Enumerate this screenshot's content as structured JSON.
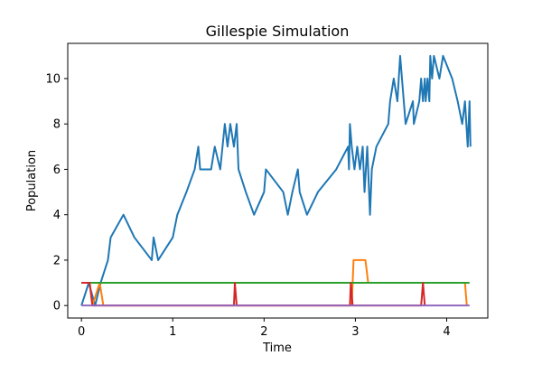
{
  "chart_data": {
    "type": "line",
    "title": "Gillespie Simulation",
    "xlabel": "Time",
    "ylabel": "Population",
    "xlim": [
      -0.15,
      4.45
    ],
    "ylim": [
      -0.55,
      11.55
    ],
    "xticks": [
      0,
      1,
      2,
      3,
      4
    ],
    "yticks": [
      0,
      2,
      4,
      6,
      8,
      10
    ],
    "grid": false,
    "legend": "none",
    "series": [
      {
        "color": "#1f77b4",
        "x": [
          0,
          0.08,
          0.15,
          0.21,
          0.29,
          0.32,
          0.46,
          0.58,
          0.77,
          0.79,
          0.84,
          1.0,
          1.05,
          1.15,
          1.24,
          1.28,
          1.3,
          1.42,
          1.46,
          1.52,
          1.57,
          1.6,
          1.63,
          1.67,
          1.7,
          1.72,
          1.8,
          1.89,
          2.0,
          2.02,
          2.21,
          2.26,
          2.31,
          2.37,
          2.39,
          2.47,
          2.59,
          2.79,
          2.92,
          2.93,
          2.94,
          2.96,
          2.99,
          3.02,
          3.05,
          3.08,
          3.1,
          3.13,
          3.16,
          3.18,
          3.23,
          3.36,
          3.38,
          3.42,
          3.46,
          3.49,
          3.55,
          3.63,
          3.64,
          3.7,
          3.72,
          3.74,
          3.76,
          3.77,
          3.79,
          3.81,
          3.82,
          3.84,
          3.86,
          3.92,
          3.96,
          4.06,
          4.12,
          4.17,
          4.2,
          4.23,
          4.25,
          4.26
        ],
        "y": [
          0,
          1,
          0,
          1,
          2,
          3,
          4,
          3,
          2,
          3,
          2,
          3,
          4,
          5,
          6,
          7,
          6,
          6,
          7,
          6,
          8,
          7,
          8,
          7,
          8,
          6,
          5,
          4,
          5,
          6,
          5,
          4,
          5,
          6,
          5,
          4,
          5,
          6,
          7,
          6,
          8,
          7,
          6,
          7,
          6,
          7,
          5,
          7,
          4,
          6,
          7,
          8,
          9,
          10,
          9,
          11,
          8,
          9,
          8,
          9,
          10,
          9,
          10,
          9,
          10,
          9,
          11,
          10,
          11,
          10,
          11,
          10,
          9,
          8,
          9,
          7,
          9,
          7
        ]
      },
      {
        "color": "#ff7f0e",
        "x": [
          0,
          0.09,
          0.12,
          0.2,
          0.24,
          2.96,
          2.98,
          3.11,
          3.14,
          4.2,
          4.22
        ],
        "y": [
          1,
          1,
          0,
          1,
          0,
          0,
          2,
          2,
          1,
          1,
          0
        ]
      },
      {
        "color": "#2ca02c",
        "x": [
          0,
          4.25
        ],
        "y": [
          1,
          1
        ]
      },
      {
        "color": "#d62728",
        "x": [
          0,
          0.09,
          0.12,
          1.67,
          1.68,
          1.7,
          2.94,
          2.95,
          2.97,
          3.72,
          3.74,
          3.76
        ],
        "y": [
          1,
          1,
          0,
          0,
          1,
          0,
          0,
          1,
          0,
          0,
          1,
          0
        ]
      },
      {
        "color": "#9467bd",
        "x": [
          0,
          4.25
        ],
        "y": [
          0,
          0
        ]
      }
    ]
  }
}
